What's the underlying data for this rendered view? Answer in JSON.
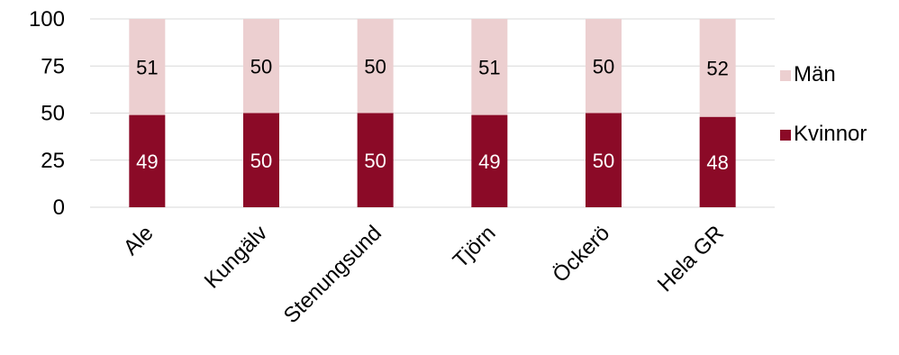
{
  "chart_data": {
    "type": "bar",
    "stacked": true,
    "title": "",
    "xlabel": "",
    "ylabel": "",
    "categories": [
      "Ale",
      "Kungälv",
      "Stenungsund",
      "Tjörn",
      "Öckerö",
      "Hela GR"
    ],
    "series": [
      {
        "name": "Kvinnor",
        "values": [
          49,
          50,
          50,
          49,
          50,
          48
        ],
        "color": "#8b0a27",
        "label_color": "#ffffff"
      },
      {
        "name": "Män",
        "values": [
          51,
          50,
          50,
          51,
          50,
          52
        ],
        "color": "#eccfd0",
        "label_color": "#000000"
      }
    ],
    "ylim": [
      0,
      100
    ],
    "yticks": [
      0,
      25,
      50,
      75,
      100
    ],
    "grid": true,
    "legend_position": "right"
  }
}
